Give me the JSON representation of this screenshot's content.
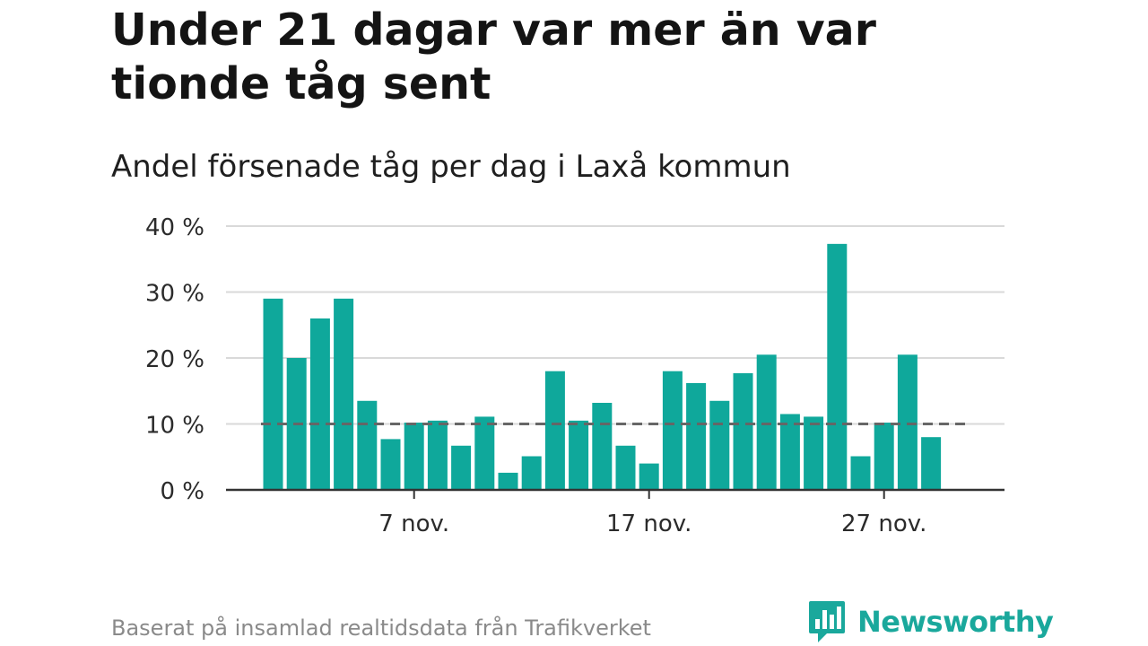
{
  "title": "Under 21 dagar var mer än var tionde tåg sent",
  "subtitle": "Andel försenade tåg per dag i Laxå kommun",
  "footer": "Baserat på insamlad realtidsdata från Trafikverket",
  "brand": {
    "name": "Newsworthy",
    "icon": "newsworthy-bar-chart-icon"
  },
  "colors": {
    "bar": "#0fa89b",
    "reference": "#666666",
    "grid": "#d9d9d9",
    "axis": "#333333"
  },
  "chart_data": {
    "type": "bar",
    "title": "Under 21 dagar var mer än var tionde tåg sent",
    "subtitle": "Andel försenade tåg per dag i Laxå kommun",
    "x": [
      "2023-11-01",
      "2023-11-02",
      "2023-11-03",
      "2023-11-04",
      "2023-11-05",
      "2023-11-06",
      "2023-11-07",
      "2023-11-08",
      "2023-11-09",
      "2023-11-10",
      "2023-11-11",
      "2023-11-12",
      "2023-11-13",
      "2023-11-14",
      "2023-11-15",
      "2023-11-16",
      "2023-11-17",
      "2023-11-18",
      "2023-11-19",
      "2023-11-20",
      "2023-11-21",
      "2023-11-22",
      "2023-11-23",
      "2023-11-24",
      "2023-11-25",
      "2023-11-26",
      "2023-11-27",
      "2023-11-28",
      "2023-11-29"
    ],
    "values": [
      29,
      20,
      26,
      29,
      13.5,
      7.7,
      10.2,
      10.5,
      6.7,
      11.1,
      2.6,
      5.1,
      18,
      10.5,
      13.2,
      6.7,
      4,
      18,
      16.2,
      13.5,
      17.7,
      20.5,
      11.5,
      11.1,
      37.3,
      5.1,
      10.2,
      20.5,
      8
    ],
    "xticks": [
      "7 nov.",
      "17 nov.",
      "27 nov."
    ],
    "xtick_dates": [
      "2023-11-07",
      "2023-11-17",
      "2023-11-27"
    ],
    "yticks": [
      "0 %",
      "10 %",
      "20 %",
      "30 %",
      "40 %"
    ],
    "ytick_values": [
      0,
      10,
      20,
      30,
      40
    ],
    "ylim": [
      0,
      40
    ],
    "reference_line": 10,
    "xlabel": "",
    "ylabel": "",
    "grid": true,
    "legend": "none"
  }
}
